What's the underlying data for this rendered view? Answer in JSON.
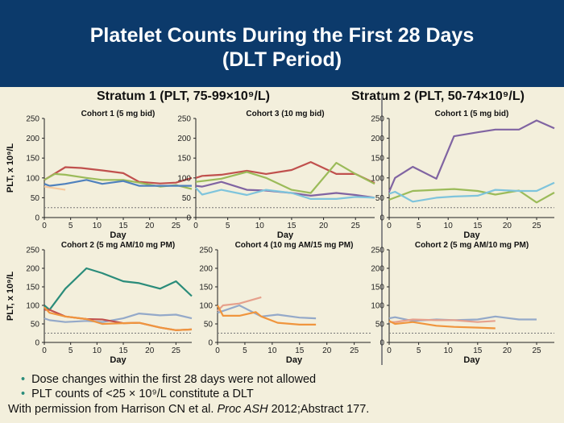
{
  "header": {
    "title_line1": "Platelet Counts During the First 28 Days",
    "title_line2": "(DLT Period)"
  },
  "strata": {
    "s1": "Stratum 1 (PLT, 75-99×10⁹/L)",
    "s2": "Stratum 2 (PLT, 50-74×10⁹/L)"
  },
  "bullets": [
    "Dose changes within the first 28 days were not allowed",
    "PLT counts of <25 × 10⁹/L constitute a DLT"
  ],
  "credit": {
    "pre": "With permission from Harrison CN et al. ",
    "journal": "Proc ASH",
    "post": " 2012;Abstract 177."
  },
  "colors": {
    "red": "#c0504d",
    "green": "#9bbb59",
    "blue": "#4f81bd",
    "purple": "#8064a2",
    "lightblue": "#7ec4dc",
    "orange": "#f0953d",
    "salmon": "#e6a08c",
    "teal": "#2a8c7a",
    "grayblue": "#94a9c9",
    "peach": "#f7c89c"
  },
  "chart_data": [
    {
      "type": "line",
      "title": "Cohort 1 (5 mg bid)",
      "ylabel": "PLT, x 10⁹/L",
      "xlabel": "Day",
      "xlim": [
        0,
        28
      ],
      "ylim": [
        0,
        250
      ],
      "xticks": [
        0,
        5,
        10,
        15,
        20,
        25
      ],
      "yticks": [
        0,
        50,
        100,
        150,
        200,
        250
      ],
      "threshold": 25,
      "series": [
        {
          "color": "red",
          "x": [
            0,
            4,
            7,
            11,
            15,
            18,
            22,
            25,
            28
          ],
          "y": [
            95,
            127,
            125,
            119,
            112,
            90,
            86,
            88,
            100
          ]
        },
        {
          "color": "green",
          "x": [
            0,
            2,
            4,
            8,
            11,
            15,
            18,
            22,
            25,
            28
          ],
          "y": [
            95,
            110,
            108,
            100,
            95,
            95,
            88,
            78,
            82,
            72
          ]
        },
        {
          "color": "blue",
          "x": [
            0,
            1,
            4,
            8,
            11,
            15,
            18,
            22,
            25,
            28
          ],
          "y": [
            85,
            80,
            85,
            95,
            85,
            92,
            80,
            80,
            80,
            80
          ]
        },
        {
          "color": "peach",
          "x": [
            0,
            4
          ],
          "y": [
            78,
            70
          ]
        }
      ]
    },
    {
      "type": "line",
      "title": "Cohort 3 (10 mg bid)",
      "xlabel": "Day",
      "xlim": [
        0,
        28
      ],
      "ylim": [
        0,
        250
      ],
      "xticks": [
        0,
        5,
        10,
        15,
        20,
        25
      ],
      "yticks": [
        0,
        50,
        100,
        150,
        200,
        250
      ],
      "threshold": 25,
      "series": [
        {
          "color": "red",
          "x": [
            0,
            1,
            4,
            8,
            11,
            15,
            18,
            22,
            25,
            28
          ],
          "y": [
            100,
            105,
            108,
            118,
            110,
            120,
            140,
            110,
            110,
            87
          ]
        },
        {
          "color": "green",
          "x": [
            0,
            4,
            8,
            11,
            15,
            18,
            22,
            25,
            28
          ],
          "y": [
            90,
            98,
            115,
            100,
            70,
            62,
            138,
            110,
            85
          ]
        },
        {
          "color": "purple",
          "x": [
            0,
            1,
            4,
            8,
            11,
            15,
            18,
            22,
            25,
            28
          ],
          "y": [
            80,
            78,
            90,
            70,
            68,
            62,
            55,
            62,
            57,
            50
          ]
        },
        {
          "color": "lightblue",
          "x": [
            0,
            1,
            4,
            8,
            11,
            15,
            18,
            22,
            25,
            28
          ],
          "y": [
            75,
            58,
            70,
            57,
            70,
            62,
            47,
            47,
            52,
            50
          ]
        }
      ]
    },
    {
      "type": "line",
      "title": "Cohort 1 (5 mg bid)",
      "xlabel": "Day",
      "xlim": [
        0,
        28
      ],
      "ylim": [
        0,
        250
      ],
      "xticks": [
        0,
        5,
        10,
        15,
        20,
        25
      ],
      "yticks": [
        0,
        50,
        100,
        150,
        200,
        250
      ],
      "threshold": 25,
      "series": [
        {
          "color": "purple",
          "x": [
            0,
            1,
            4,
            8,
            11,
            15,
            18,
            22,
            25,
            28
          ],
          "y": [
            65,
            100,
            128,
            98,
            205,
            215,
            222,
            222,
            245,
            225
          ]
        },
        {
          "color": "green",
          "x": [
            0,
            4,
            8,
            11,
            15,
            18,
            22,
            25,
            28
          ],
          "y": [
            45,
            67,
            70,
            72,
            67,
            58,
            68,
            38,
            63
          ]
        },
        {
          "color": "lightblue",
          "x": [
            0,
            1,
            4,
            8,
            11,
            15,
            18,
            22,
            25,
            28
          ],
          "y": [
            60,
            65,
            40,
            50,
            53,
            55,
            70,
            67,
            67,
            88
          ]
        }
      ]
    },
    {
      "type": "line",
      "title": "Cohort 2 (5 mg AM/10 mg PM)",
      "ylabel": "PLT, x 10⁹/L",
      "xlabel": "Day",
      "xlim": [
        0,
        28
      ],
      "ylim": [
        0,
        250
      ],
      "xticks": [
        0,
        5,
        10,
        15,
        20,
        25
      ],
      "yticks": [
        0,
        50,
        100,
        150,
        200,
        250
      ],
      "threshold": 25,
      "series": [
        {
          "color": "teal",
          "x": [
            0,
            1,
            4,
            8,
            11,
            15,
            18,
            22,
            25,
            28
          ],
          "y": [
            100,
            88,
            145,
            200,
            187,
            165,
            160,
            145,
            165,
            125
          ]
        },
        {
          "color": "grayblue",
          "x": [
            0,
            1,
            4,
            8,
            11,
            15,
            18,
            22,
            25,
            28
          ],
          "y": [
            65,
            60,
            55,
            58,
            55,
            65,
            78,
            73,
            75,
            65
          ]
        },
        {
          "color": "red",
          "x": [
            0,
            1,
            4,
            8,
            11,
            15,
            18,
            22,
            25,
            28
          ],
          "y": [
            88,
            88,
            70,
            63,
            62,
            52,
            53,
            40,
            33,
            35
          ]
        },
        {
          "color": "orange",
          "x": [
            0,
            1,
            4,
            8,
            11,
            15,
            18,
            22,
            25,
            28
          ],
          "y": [
            95,
            80,
            70,
            63,
            50,
            52,
            53,
            40,
            33,
            35
          ]
        }
      ]
    },
    {
      "type": "line",
      "title": "Cohort 4 (10 mg AM/15 mg PM)",
      "xlabel": "Day",
      "xlim": [
        0,
        28
      ],
      "ylim": [
        0,
        250
      ],
      "xticks": [
        0,
        5,
        10,
        15,
        20,
        25
      ],
      "yticks": [
        0,
        50,
        100,
        150,
        200,
        250
      ],
      "threshold": 25,
      "series": [
        {
          "color": "salmon",
          "x": [
            0,
            1,
            4,
            8
          ],
          "y": [
            85,
            100,
            105,
            122
          ]
        },
        {
          "color": "grayblue",
          "x": [
            0,
            1,
            4,
            8,
            11,
            15,
            18
          ],
          "y": [
            80,
            85,
            100,
            70,
            75,
            67,
            65
          ]
        },
        {
          "color": "orange",
          "x": [
            0,
            1,
            4,
            7,
            8,
            11,
            15,
            18
          ],
          "y": [
            100,
            72,
            72,
            82,
            70,
            53,
            48,
            48
          ]
        }
      ]
    },
    {
      "type": "line",
      "title": "Cohort 2 (5 mg AM/10 mg PM)",
      "xlabel": "Day",
      "xlim": [
        0,
        28
      ],
      "ylim": [
        0,
        250
      ],
      "xticks": [
        0,
        5,
        10,
        15,
        20,
        25
      ],
      "yticks": [
        0,
        50,
        100,
        150,
        200,
        250
      ],
      "threshold": 25,
      "series": [
        {
          "color": "grayblue",
          "x": [
            0,
            1,
            4,
            8,
            11,
            15,
            18,
            22,
            25
          ],
          "y": [
            65,
            68,
            58,
            62,
            60,
            62,
            70,
            62,
            62
          ]
        },
        {
          "color": "salmon",
          "x": [
            0,
            1,
            4,
            8,
            11,
            15,
            18
          ],
          "y": [
            55,
            55,
            62,
            60,
            60,
            55,
            58
          ]
        },
        {
          "color": "orange",
          "x": [
            0,
            1,
            4,
            8,
            11,
            15,
            18
          ],
          "y": [
            58,
            50,
            55,
            45,
            42,
            40,
            38
          ]
        }
      ]
    }
  ]
}
